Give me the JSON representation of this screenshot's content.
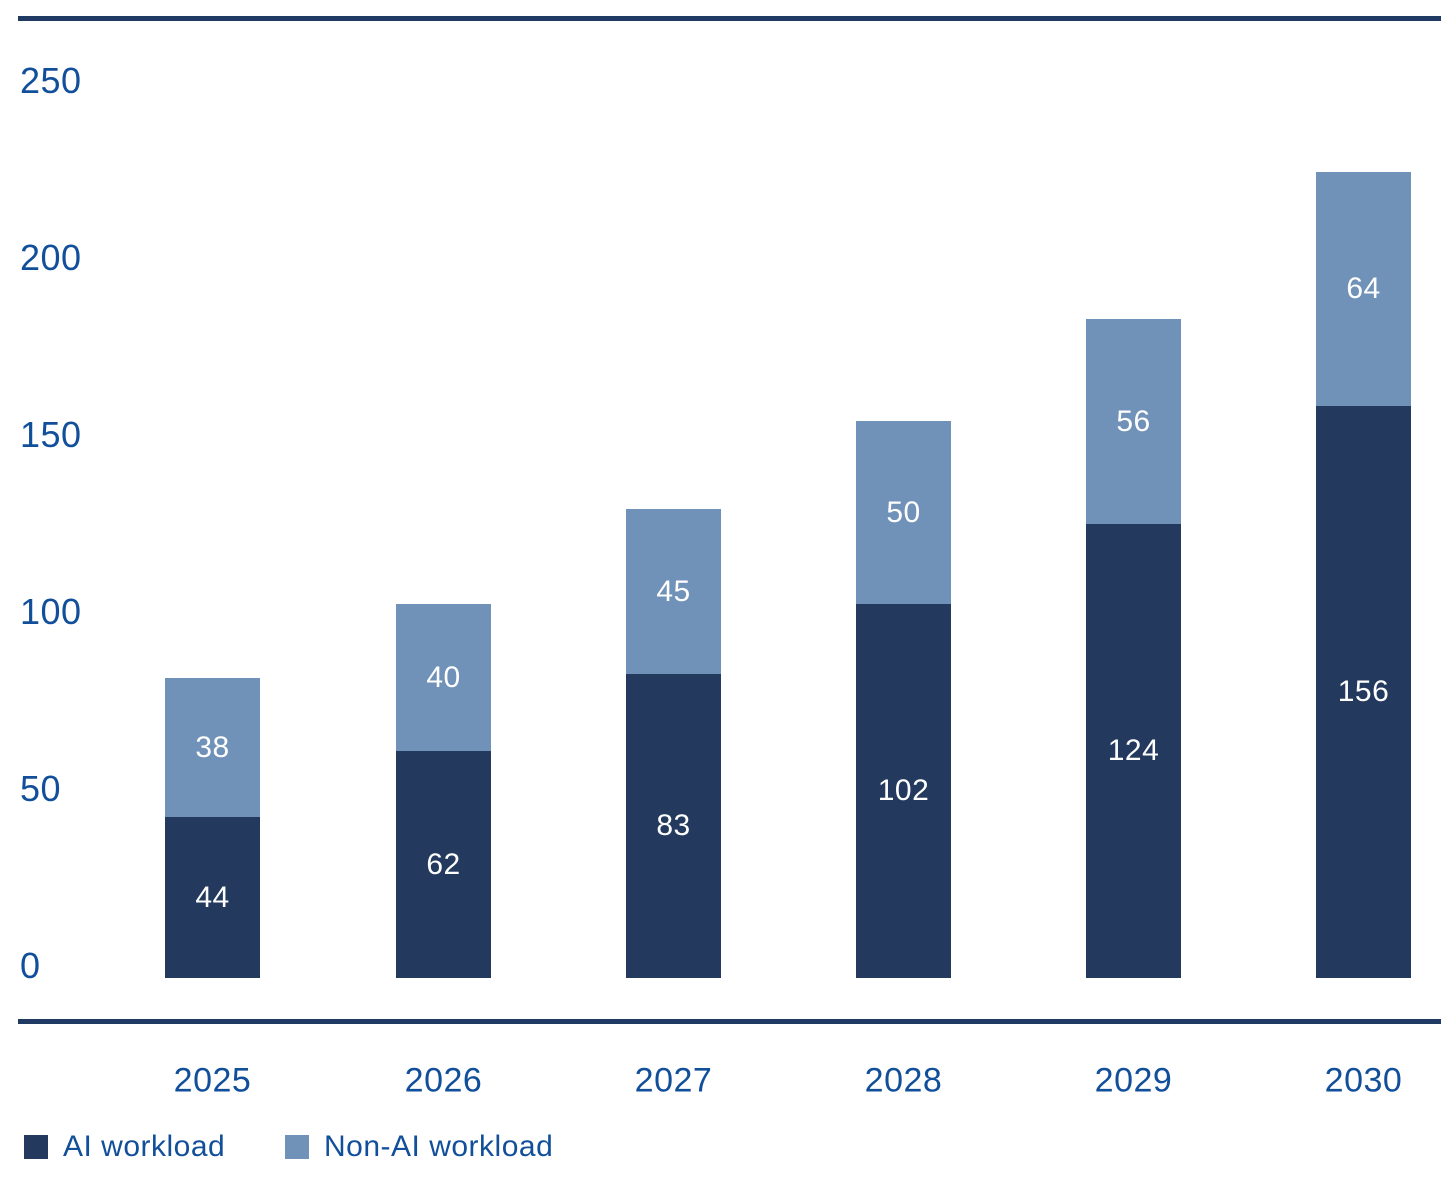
{
  "chart_data": {
    "type": "bar",
    "stacked": true,
    "categories": [
      "2025",
      "2026",
      "2027",
      "2028",
      "2029",
      "2030"
    ],
    "series": [
      {
        "name": "AI workload",
        "color": "#233A5E",
        "values": [
          44,
          62,
          83,
          102,
          124,
          156
        ]
      },
      {
        "name": "Non-AI workload",
        "color": "#7092B8",
        "values": [
          38,
          40,
          45,
          50,
          56,
          64
        ]
      }
    ],
    "totals": [
      82,
      102,
      128,
      152,
      180,
      220
    ],
    "title": "",
    "xlabel": "",
    "ylabel": "",
    "ylim": [
      0,
      250
    ],
    "yticks_display": [
      "250",
      "200",
      "150",
      "100",
      "50",
      "0"
    ],
    "grid": false,
    "data_labels": "white numbers centered in each segment",
    "legend_position": "bottom-left"
  },
  "legend": {
    "items": [
      {
        "label": "AI workload",
        "color": "#233A5E"
      },
      {
        "label": "Non-AI workload",
        "color": "#7092B8"
      }
    ]
  },
  "colors": {
    "axis_text": "#124F9A",
    "axis_line": "#1F3A63",
    "background": "#FFFFFF",
    "bar_label_text": "#FFFFFF"
  }
}
